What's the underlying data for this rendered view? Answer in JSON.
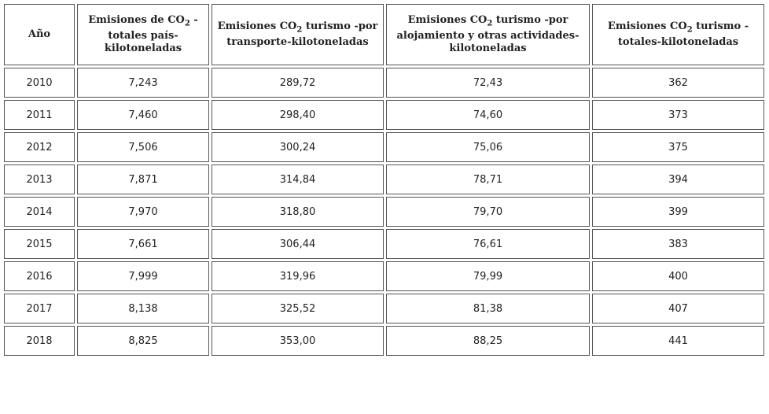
{
  "table": {
    "header": [
      [
        "Año"
      ],
      [
        "Emisiones de CO",
        "2",
        " -totales país-kilotoneladas"
      ],
      [
        "Emisiones CO",
        "2",
        " turismo -por transporte-kilotoneladas"
      ],
      [
        "Emisiones CO",
        "2",
        " turismo -por alojamiento y otras actividades-kilotoneladas"
      ],
      [
        "Emisiones CO",
        "2",
        " turismo -totales-kilotoneladas"
      ]
    ],
    "rows": [
      [
        "2010",
        "7,243",
        "289,72",
        "72,43",
        "362"
      ],
      [
        "2011",
        "7,460",
        "298,40",
        "74,60",
        "373"
      ],
      [
        "2012",
        "7,506",
        "300,24",
        "75,06",
        "375"
      ],
      [
        "2013",
        "7,871",
        "314,84",
        "78,71",
        "394"
      ],
      [
        "2014",
        "7,970",
        "318,80",
        "79,70",
        "399"
      ],
      [
        "2015",
        "7,661",
        "306,44",
        "76,61",
        "383"
      ],
      [
        "2016",
        "7,999",
        "319,96",
        "79,99",
        "400"
      ],
      [
        "2017",
        "8,138",
        "325,52",
        "81,38",
        "407"
      ],
      [
        "2018",
        "8,825",
        "353,00",
        "88,25",
        "441"
      ]
    ]
  }
}
